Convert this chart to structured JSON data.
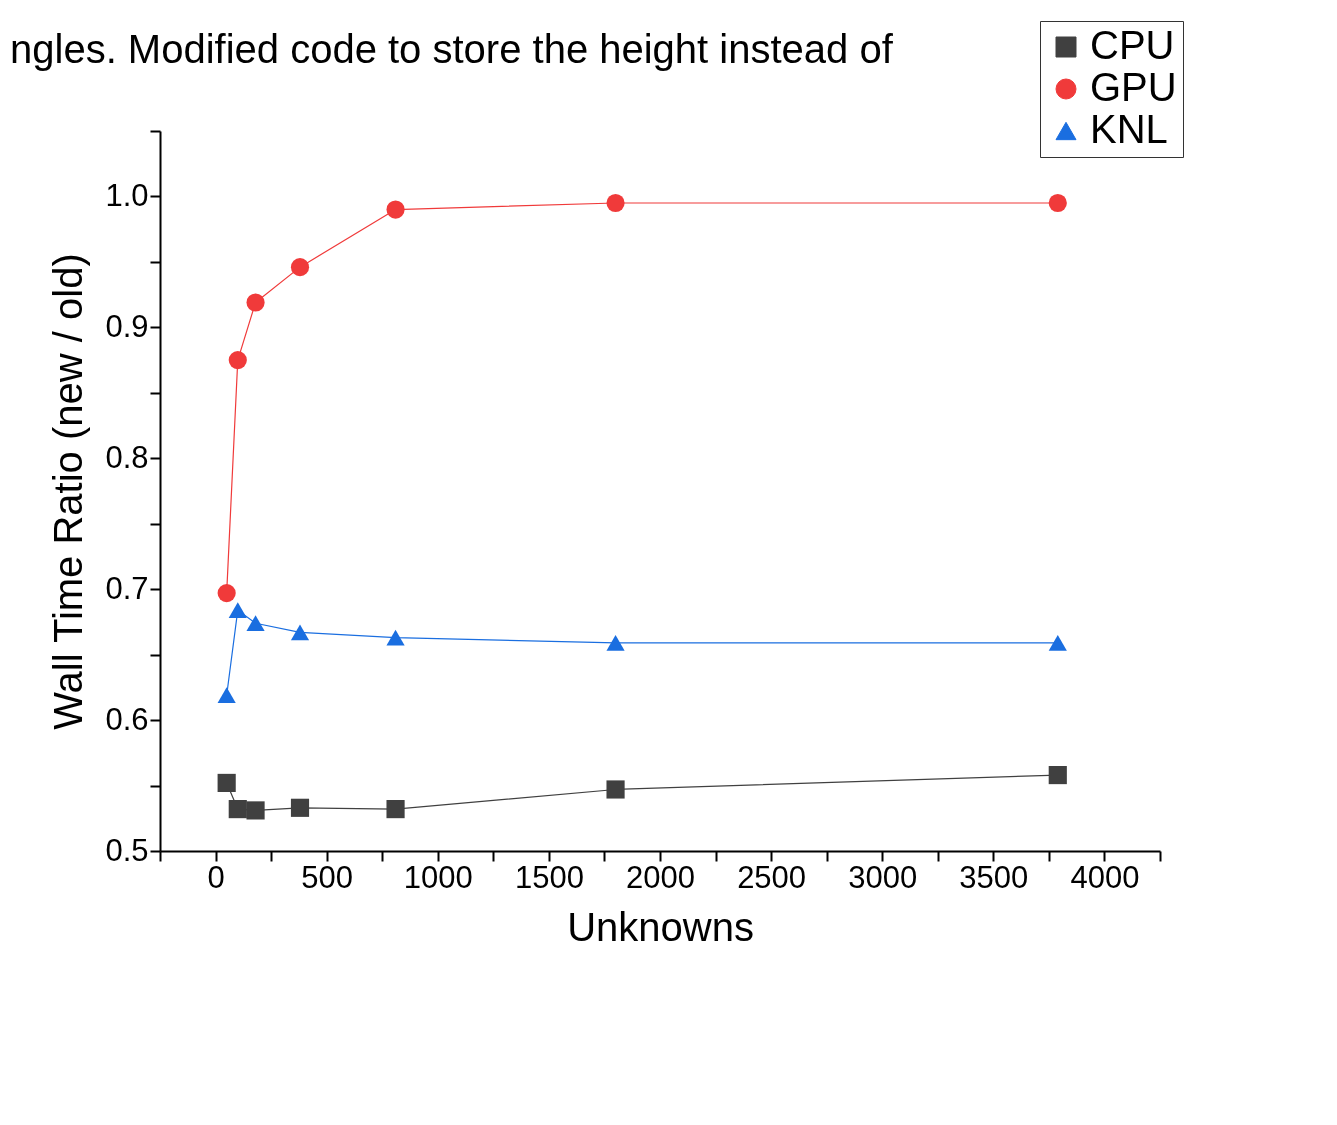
{
  "chart_data": {
    "type": "line",
    "xlabel": "Unknowns",
    "ylabel": "Wall Time Ratio (new / old)",
    "annotations": [
      "ngles. Modified code to store the height instead of"
    ],
    "x": [
      50,
      100,
      180,
      380,
      810,
      1800,
      3790
    ],
    "series": [
      {
        "name": "CPU",
        "color": "#404040",
        "marker": "square",
        "values": [
          0.552,
          0.532,
          0.531,
          0.533,
          0.532,
          0.547,
          0.558
        ]
      },
      {
        "name": "GPU",
        "color": "#f03a3a",
        "marker": "circle",
        "values": [
          0.697,
          0.875,
          0.919,
          0.946,
          0.99,
          0.995,
          0.995
        ]
      },
      {
        "name": "KNL",
        "color": "#1a6ee0",
        "marker": "triangle",
        "values": [
          0.619,
          0.684,
          0.674,
          0.667,
          0.663,
          0.659,
          0.659
        ]
      }
    ],
    "xlim": [
      -250,
      4250
    ],
    "xticks": [
      {
        "value": -250,
        "label": null
      },
      0,
      {
        "value": 250,
        "label": null
      },
      500,
      {
        "value": 750,
        "label": null
      },
      1000,
      {
        "value": 1250,
        "label": null
      },
      1500,
      {
        "value": 1750,
        "label": null
      },
      2000,
      {
        "value": 2250,
        "label": null
      },
      2500,
      {
        "value": 2750,
        "label": null
      },
      3000,
      {
        "value": 3250,
        "label": null
      },
      3500,
      {
        "value": 3750,
        "label": null
      },
      4000,
      {
        "value": 4250,
        "label": null
      }
    ],
    "ylim": [
      0.5,
      1.05
    ],
    "yticks": [
      0.5,
      {
        "value": 0.55,
        "label": null
      },
      0.6,
      {
        "value": 0.65,
        "label": null
      },
      0.7,
      {
        "value": 0.75,
        "label": null
      },
      0.8,
      {
        "value": 0.85,
        "label": null
      },
      0.9,
      {
        "value": 0.95,
        "label": null
      },
      {
        "value": 1.0,
        "label": "1.0"
      },
      {
        "value": 1.05,
        "label": null
      }
    ],
    "grid": false,
    "legend": "top right",
    "line_style": "solid"
  }
}
